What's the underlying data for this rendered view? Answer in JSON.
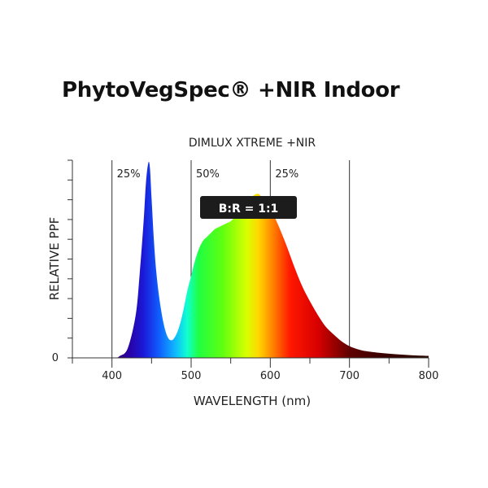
{
  "page_title": "PhytoVegSpec® +NIR Indoor",
  "chart_data": {
    "type": "area",
    "title": "DIMLUX XTREME  +NIR",
    "xlabel": "WAVELENGTH (nm)",
    "ylabel": "RELATIVE PPF",
    "xlim": [
      350,
      800
    ],
    "x_ticks": [
      400,
      500,
      600,
      700,
      800
    ],
    "y_tick_label": "0",
    "band_lines": [
      400,
      500,
      600,
      700
    ],
    "band_labels": [
      {
        "label": "25%",
        "from": 400,
        "to": 500
      },
      {
        "label": "50%",
        "from": 500,
        "to": 600
      },
      {
        "label": "25%",
        "from": 600,
        "to": 700
      }
    ],
    "annotation": "B:R = 1:1",
    "x": [
      350,
      400,
      410,
      420,
      430,
      435,
      440,
      443,
      446,
      448,
      450,
      453,
      456,
      460,
      465,
      470,
      475,
      480,
      485,
      490,
      495,
      500,
      505,
      510,
      515,
      520,
      525,
      530,
      535,
      540,
      545,
      550,
      555,
      560,
      565,
      570,
      575,
      580,
      585,
      590,
      595,
      600,
      610,
      620,
      630,
      640,
      650,
      660,
      670,
      680,
      690,
      700,
      710,
      720,
      740,
      760,
      780,
      800
    ],
    "values": [
      0,
      0,
      0.01,
      0.05,
      0.22,
      0.43,
      0.7,
      0.9,
      1.0,
      0.97,
      0.82,
      0.6,
      0.44,
      0.3,
      0.18,
      0.11,
      0.09,
      0.11,
      0.16,
      0.24,
      0.34,
      0.42,
      0.5,
      0.56,
      0.6,
      0.62,
      0.64,
      0.66,
      0.67,
      0.68,
      0.69,
      0.7,
      0.72,
      0.74,
      0.77,
      0.8,
      0.82,
      0.835,
      0.84,
      0.82,
      0.8,
      0.77,
      0.68,
      0.58,
      0.47,
      0.37,
      0.29,
      0.22,
      0.16,
      0.12,
      0.085,
      0.06,
      0.045,
      0.035,
      0.025,
      0.018,
      0.013,
      0.01
    ],
    "spectrum_colors": [
      {
        "nm": 400,
        "color": "#3a0060"
      },
      {
        "nm": 420,
        "color": "#2a00a0"
      },
      {
        "nm": 440,
        "color": "#1a1ad8"
      },
      {
        "nm": 460,
        "color": "#1060ff"
      },
      {
        "nm": 480,
        "color": "#10b8ff"
      },
      {
        "nm": 495,
        "color": "#10ffd0"
      },
      {
        "nm": 510,
        "color": "#20ff40"
      },
      {
        "nm": 540,
        "color": "#60ff10"
      },
      {
        "nm": 570,
        "color": "#d8ff00"
      },
      {
        "nm": 585,
        "color": "#ffd800"
      },
      {
        "nm": 605,
        "color": "#ff7a00"
      },
      {
        "nm": 625,
        "color": "#ff1800"
      },
      {
        "nm": 660,
        "color": "#d80000"
      },
      {
        "nm": 700,
        "color": "#600000"
      },
      {
        "nm": 740,
        "color": "#3a0000"
      },
      {
        "nm": 800,
        "color": "#2a0a00"
      }
    ]
  }
}
